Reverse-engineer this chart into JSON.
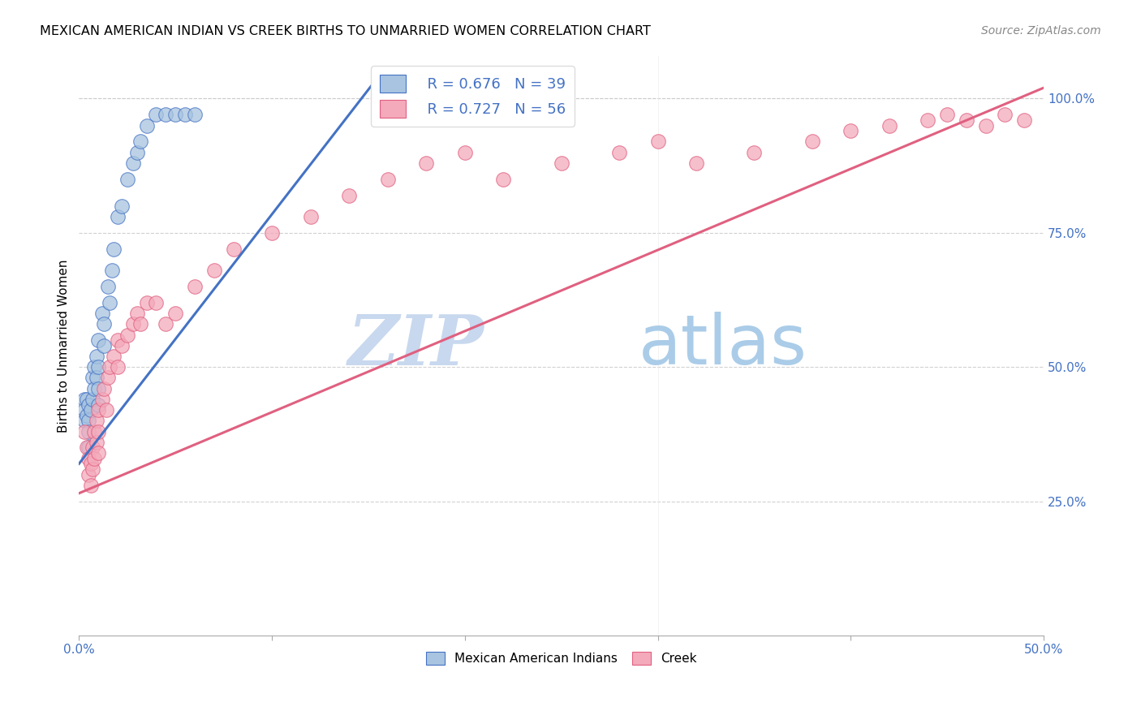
{
  "title": "MEXICAN AMERICAN INDIAN VS CREEK BIRTHS TO UNMARRIED WOMEN CORRELATION CHART",
  "source": "Source: ZipAtlas.com",
  "ylabel": "Births to Unmarried Women",
  "legend_r1": "R = 0.676",
  "legend_n1": "N = 39",
  "legend_r2": "R = 0.727",
  "legend_n2": "N = 56",
  "legend_label1": "Mexican American Indians",
  "legend_label2": "Creek",
  "color_blue": "#A8C4E0",
  "color_pink": "#F4AABB",
  "color_blue_line": "#4472C4",
  "color_pink_line": "#E06080",
  "color_text_blue": "#4472C4",
  "watermark_zip": "ZIP",
  "watermark_atlas": "atlas",
  "xlim": [
    0.0,
    0.5
  ],
  "ylim": [
    0.0,
    1.08
  ],
  "blue_x": [
    0.003,
    0.003,
    0.003,
    0.004,
    0.004,
    0.005,
    0.005,
    0.005,
    0.005,
    0.006,
    0.007,
    0.007,
    0.008,
    0.008,
    0.009,
    0.009,
    0.01,
    0.01,
    0.01,
    0.01,
    0.012,
    0.013,
    0.013,
    0.015,
    0.016,
    0.017,
    0.018,
    0.02,
    0.022,
    0.025,
    0.028,
    0.03,
    0.032,
    0.035,
    0.04,
    0.045,
    0.05,
    0.055,
    0.06
  ],
  "blue_y": [
    0.44,
    0.42,
    0.4,
    0.44,
    0.41,
    0.43,
    0.4,
    0.38,
    0.35,
    0.42,
    0.48,
    0.44,
    0.5,
    0.46,
    0.52,
    0.48,
    0.55,
    0.5,
    0.46,
    0.43,
    0.6,
    0.58,
    0.54,
    0.65,
    0.62,
    0.68,
    0.72,
    0.78,
    0.8,
    0.85,
    0.88,
    0.9,
    0.92,
    0.95,
    0.97,
    0.97,
    0.97,
    0.97,
    0.97
  ],
  "pink_x": [
    0.003,
    0.004,
    0.005,
    0.005,
    0.006,
    0.006,
    0.007,
    0.007,
    0.008,
    0.008,
    0.009,
    0.009,
    0.01,
    0.01,
    0.01,
    0.012,
    0.013,
    0.014,
    0.015,
    0.016,
    0.018,
    0.02,
    0.02,
    0.022,
    0.025,
    0.028,
    0.03,
    0.032,
    0.035,
    0.04,
    0.045,
    0.05,
    0.06,
    0.07,
    0.08,
    0.1,
    0.12,
    0.14,
    0.16,
    0.18,
    0.2,
    0.22,
    0.25,
    0.28,
    0.3,
    0.32,
    0.35,
    0.38,
    0.4,
    0.42,
    0.44,
    0.45,
    0.46,
    0.47,
    0.48,
    0.49
  ],
  "pink_y": [
    0.38,
    0.35,
    0.33,
    0.3,
    0.32,
    0.28,
    0.35,
    0.31,
    0.38,
    0.33,
    0.4,
    0.36,
    0.42,
    0.38,
    0.34,
    0.44,
    0.46,
    0.42,
    0.48,
    0.5,
    0.52,
    0.55,
    0.5,
    0.54,
    0.56,
    0.58,
    0.6,
    0.58,
    0.62,
    0.62,
    0.58,
    0.6,
    0.65,
    0.68,
    0.72,
    0.75,
    0.78,
    0.82,
    0.85,
    0.88,
    0.9,
    0.85,
    0.88,
    0.9,
    0.92,
    0.88,
    0.9,
    0.92,
    0.94,
    0.95,
    0.96,
    0.97,
    0.96,
    0.95,
    0.97,
    0.96
  ],
  "blue_line_x": [
    0.0,
    0.155
  ],
  "blue_line_y": [
    0.32,
    1.04
  ],
  "pink_line_x": [
    0.0,
    0.5
  ],
  "pink_line_y": [
    0.265,
    1.02
  ]
}
